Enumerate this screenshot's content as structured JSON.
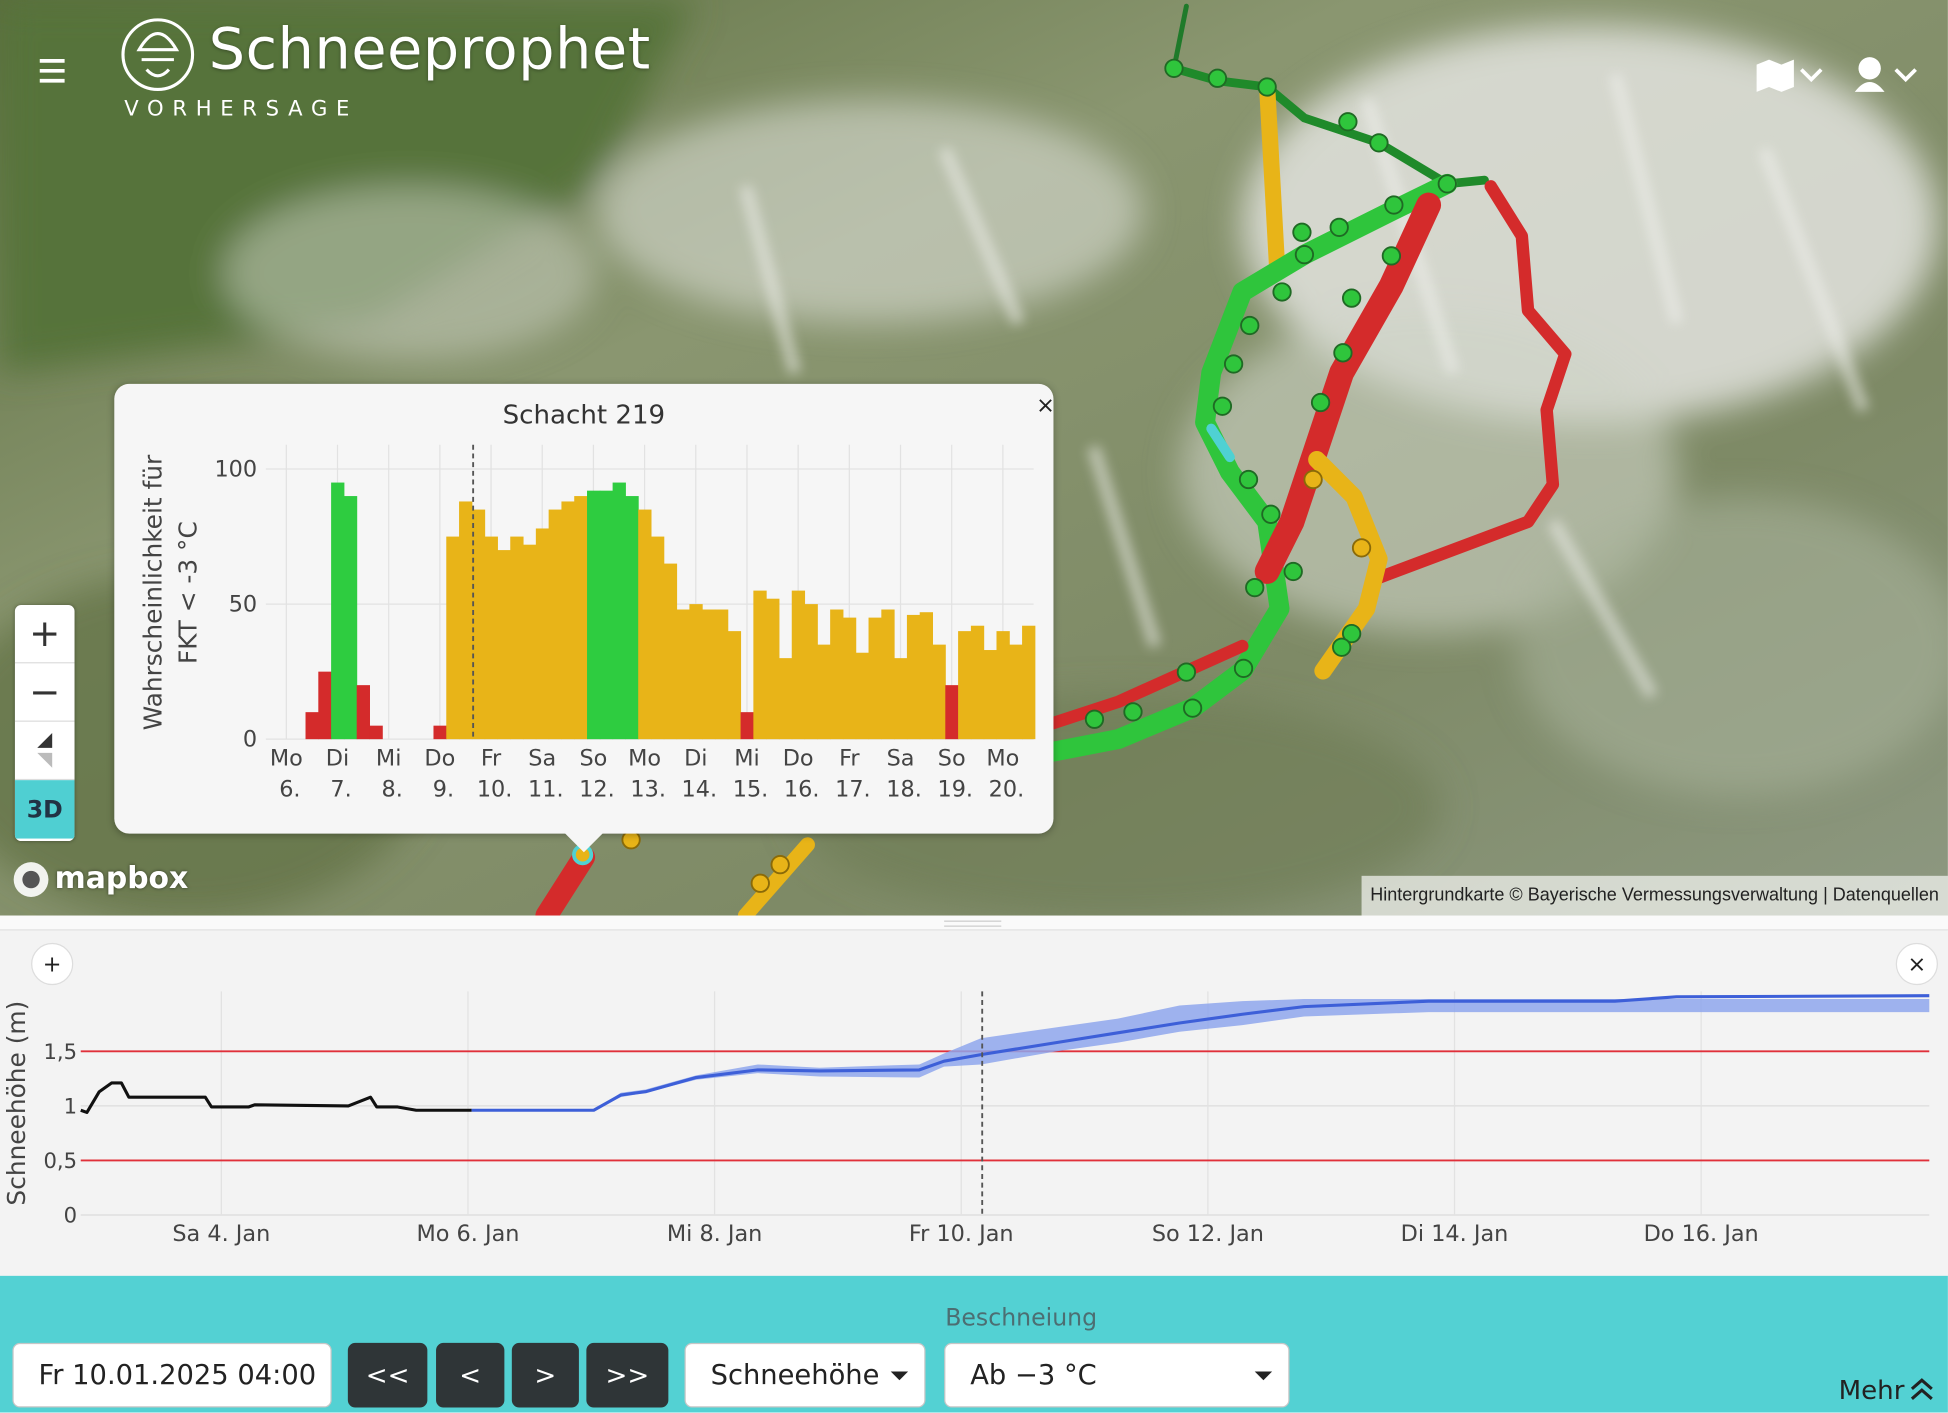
{
  "header": {
    "title": "Schneeprophet",
    "subtitle": "VORHERSAGE"
  },
  "map": {
    "zoom_in": "+",
    "zoom_out": "−",
    "mode": "3D",
    "logo": "mapbox",
    "attribution": "Hintergrundkarte © Bayerische Vermessungsverwaltung | Datenquellen"
  },
  "popup": {
    "close": "×"
  },
  "panel": {
    "add": "+",
    "close": "×"
  },
  "controls": {
    "section": "Beschneiung",
    "datetime": "Fr 10.01.2025 04:00",
    "buttons": [
      "<<",
      "<",
      ">",
      ">>"
    ],
    "variable": "Schneehöhe",
    "threshold": "Ab −3 °C",
    "more": "Mehr"
  },
  "chart_data": [
    {
      "type": "area",
      "title": "Schacht 219",
      "ylabel_lines": [
        "Wahrscheinlichkeit für",
        "FKT < -3 °C"
      ],
      "x": [
        0.5,
        0.75,
        1.0,
        1.25,
        1.5,
        1.75,
        2.0,
        2.25,
        2.5,
        2.75,
        3.0,
        3.25,
        3.5,
        3.75,
        4.0,
        4.25,
        4.5,
        4.75,
        5.0,
        5.25,
        5.5,
        5.75,
        6.0,
        6.25,
        6.5,
        6.75,
        7.0,
        7.25,
        7.5,
        7.75,
        8.0,
        8.25,
        8.5,
        8.75,
        9.0,
        9.25,
        9.5,
        9.75,
        10.0,
        10.25,
        10.5,
        10.75,
        11.0,
        11.25,
        11.5,
        11.75,
        12.0,
        12.25,
        12.5,
        12.75,
        13.0,
        13.25,
        13.5,
        13.75,
        14.0,
        14.25,
        14.5
      ],
      "values": [
        10,
        25,
        95,
        90,
        20,
        5,
        0,
        0,
        0,
        0,
        5,
        75,
        88,
        85,
        75,
        70,
        75,
        72,
        78,
        85,
        88,
        90,
        92,
        92,
        95,
        90,
        85,
        75,
        65,
        48,
        50,
        48,
        48,
        40,
        10,
        55,
        52,
        30,
        55,
        50,
        35,
        48,
        45,
        32,
        45,
        48,
        30,
        46,
        47,
        35,
        20,
        40,
        42,
        33,
        40,
        35,
        42
      ],
      "colors": [
        "#d42b2b",
        "#d42b2b",
        "#2ecc40",
        "#2ecc40",
        "#d42b2b",
        "#d42b2b",
        "#d42b2b",
        "#d42b2b",
        "#d42b2b",
        "#d42b2b",
        "#d42b2b",
        "#e8b418",
        "#e8b418",
        "#e8b418",
        "#e8b418",
        "#e8b418",
        "#e8b418",
        "#e8b418",
        "#e8b418",
        "#e8b418",
        "#e8b418",
        "#e8b418",
        "#2ecc40",
        "#2ecc40",
        "#2ecc40",
        "#2ecc40",
        "#e8b418",
        "#e8b418",
        "#e8b418",
        "#e8b418",
        "#e8b418",
        "#e8b418",
        "#e8b418",
        "#e8b418",
        "#d42b2b",
        "#e8b418",
        "#e8b418",
        "#e8b418",
        "#e8b418",
        "#e8b418",
        "#e8b418",
        "#e8b418",
        "#e8b418",
        "#e8b418",
        "#e8b418",
        "#e8b418",
        "#e8b418",
        "#e8b418",
        "#e8b418",
        "#e8b418",
        "#d42b2b",
        "#e8b418",
        "#e8b418",
        "#e8b418",
        "#e8b418",
        "#e8b418",
        "#e8b418"
      ],
      "xlim": [
        -0.4,
        14.6
      ],
      "xticks": [
        {
          "value": 0,
          "label": "Mo 6."
        },
        {
          "value": 1,
          "label": "Di 7."
        },
        {
          "value": 2,
          "label": "Mi 8."
        },
        {
          "value": 3,
          "label": "Do 9."
        },
        {
          "value": 4,
          "label": "Fr 10."
        },
        {
          "value": 5,
          "label": "Sa 11."
        },
        {
          "value": 6,
          "label": "So 12."
        },
        {
          "value": 7,
          "label": "Mo 13."
        },
        {
          "value": 8,
          "label": "Di 14."
        },
        {
          "value": 9,
          "label": "Mi 15."
        },
        {
          "value": 10,
          "label": "Do 16."
        },
        {
          "value": 11,
          "label": "Fr 17."
        },
        {
          "value": 12,
          "label": "Sa 18."
        },
        {
          "value": 13,
          "label": "So 19."
        },
        {
          "value": 14,
          "label": "Mo 20."
        }
      ],
      "ylim": [
        0,
        109
      ],
      "yticks": [
        0,
        50,
        100
      ],
      "grid": true,
      "marker_x": 3.65
    },
    {
      "type": "line",
      "ylabel": "Schneehöhe (m)",
      "xlim": [
        2.86,
        17.85
      ],
      "xticks": [
        {
          "value": 4,
          "label": "Sa 4. Jan"
        },
        {
          "value": 6,
          "label": "Mo 6. Jan"
        },
        {
          "value": 8,
          "label": "Mi 8. Jan"
        },
        {
          "value": 10,
          "label": "Fr 10. Jan"
        },
        {
          "value": 12,
          "label": "So 12. Jan"
        },
        {
          "value": 14,
          "label": "Di 14. Jan"
        },
        {
          "value": 16,
          "label": "Do 16. Jan"
        }
      ],
      "ylim": [
        0,
        2.05
      ],
      "yticks": [
        0,
        {
          "value": 0.5,
          "label": "0,5"
        },
        1,
        {
          "value": 1.5,
          "label": "1,5"
        }
      ],
      "grid": true,
      "threshold_lines": [
        0.5,
        1.5
      ],
      "threshold_color": "#e0303a",
      "marker_x": 10.17,
      "observed": {
        "color": "#111111",
        "x": [
          2.86,
          2.91,
          3.01,
          3.11,
          3.19,
          3.25,
          3.42,
          3.87,
          3.92,
          4.22,
          4.27,
          5.03,
          5.21,
          5.26,
          5.43,
          5.58,
          6.03
        ],
        "values": [
          0.96,
          0.94,
          1.13,
          1.21,
          1.21,
          1.08,
          1.08,
          1.08,
          0.99,
          0.99,
          1.01,
          1.0,
          1.08,
          0.99,
          0.99,
          0.96,
          0.96
        ]
      },
      "forecast": {
        "color": "#3d5fd8",
        "x": [
          6.03,
          7.02,
          7.24,
          7.44,
          7.85,
          8.35,
          8.85,
          9.66,
          9.86,
          10.16,
          10.77,
          11.27,
          11.77,
          12.28,
          12.78,
          13.79,
          15.3,
          15.8,
          17.85
        ],
        "values": [
          0.96,
          0.96,
          1.1,
          1.13,
          1.26,
          1.33,
          1.32,
          1.33,
          1.41,
          1.47,
          1.58,
          1.67,
          1.76,
          1.84,
          1.91,
          1.96,
          1.96,
          2.0,
          2.01
        ]
      },
      "band": {
        "color": "#8ea6ec",
        "x": [
          6.03,
          7.02,
          7.24,
          7.44,
          7.85,
          8.35,
          8.85,
          9.66,
          9.86,
          10.16,
          10.77,
          11.27,
          11.77,
          12.28,
          12.78,
          13.79,
          15.3,
          15.8,
          17.85
        ],
        "lower": [
          0.96,
          0.96,
          1.08,
          1.12,
          1.24,
          1.3,
          1.27,
          1.26,
          1.36,
          1.38,
          1.5,
          1.58,
          1.68,
          1.74,
          1.82,
          1.86,
          1.86,
          1.86,
          1.86
        ],
        "upper": [
          0.96,
          0.96,
          1.12,
          1.15,
          1.28,
          1.38,
          1.35,
          1.38,
          1.48,
          1.62,
          1.72,
          1.8,
          1.92,
          1.96,
          1.98,
          1.98,
          1.98,
          1.98,
          1.98
        ]
      }
    }
  ]
}
